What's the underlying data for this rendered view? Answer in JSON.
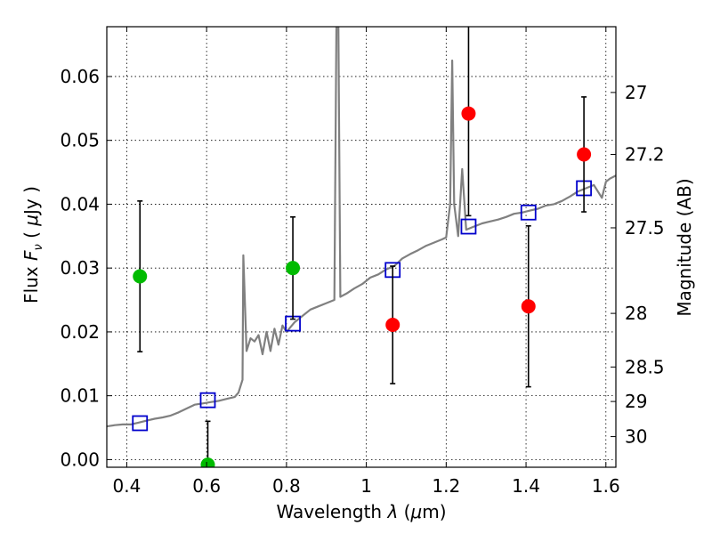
{
  "chart_data": {
    "type": "scatter",
    "title": "",
    "xlabel": "Wavelength  λ (μm)",
    "ylabel": "Flux  F_ν  ( μJy )",
    "ylabel_parts": {
      "a": "Flux  ",
      "b": "F",
      "c": "ν",
      "d": "  ( ",
      "e": "μ",
      "f": "Jy )"
    },
    "xlabel_parts": {
      "a": "Wavelength  ",
      "b": "λ",
      "c": " (",
      "d": "μ",
      "e": "m)"
    },
    "y2label": "Magnitude (AB)",
    "xlim": [
      0.35,
      1.625
    ],
    "ylim": [
      -0.0012,
      0.0678
    ],
    "grid": true,
    "x_ticks": [
      {
        "value": 0.4,
        "label": "0.4"
      },
      {
        "value": 0.6,
        "label": "0.6"
      },
      {
        "value": 0.8,
        "label": "0.8"
      },
      {
        "value": 1.0,
        "label": "1"
      },
      {
        "value": 1.2,
        "label": "1.2"
      },
      {
        "value": 1.4,
        "label": "1.4"
      },
      {
        "value": 1.6,
        "label": "1.6"
      }
    ],
    "y_ticks": [
      {
        "value": 0.0,
        "label": "0.00"
      },
      {
        "value": 0.01,
        "label": "0.01"
      },
      {
        "value": 0.02,
        "label": "0.02"
      },
      {
        "value": 0.03,
        "label": "0.03"
      },
      {
        "value": 0.04,
        "label": "0.04"
      },
      {
        "value": 0.05,
        "label": "0.05"
      },
      {
        "value": 0.06,
        "label": "0.06"
      }
    ],
    "y2_ticks": [
      {
        "flux": 0.0575,
        "label": "27"
      },
      {
        "flux": 0.0478,
        "label": "27.2"
      },
      {
        "flux": 0.0363,
        "label": "27.5"
      },
      {
        "flux": 0.0229,
        "label": "28"
      },
      {
        "flux": 0.0145,
        "label": "28.5"
      },
      {
        "flux": 0.0091,
        "label": "29"
      },
      {
        "flux": 0.0036,
        "label": "30"
      }
    ],
    "series": [
      {
        "kind": "line",
        "color": "#808080",
        "points": [
          [
            0.35,
            0.0052
          ],
          [
            0.37,
            0.0054
          ],
          [
            0.39,
            0.0055
          ],
          [
            0.41,
            0.0055
          ],
          [
            0.43,
            0.0058
          ],
          [
            0.45,
            0.0061
          ],
          [
            0.47,
            0.0064
          ],
          [
            0.49,
            0.0066
          ],
          [
            0.51,
            0.0069
          ],
          [
            0.53,
            0.0074
          ],
          [
            0.55,
            0.008
          ],
          [
            0.57,
            0.0086
          ],
          [
            0.59,
            0.0088
          ],
          [
            0.61,
            0.009
          ],
          [
            0.63,
            0.0092
          ],
          [
            0.65,
            0.0095
          ],
          [
            0.67,
            0.0098
          ],
          [
            0.68,
            0.0105
          ],
          [
            0.69,
            0.0125
          ],
          [
            0.692,
            0.032
          ],
          [
            0.7,
            0.017
          ],
          [
            0.71,
            0.019
          ],
          [
            0.72,
            0.0185
          ],
          [
            0.73,
            0.0195
          ],
          [
            0.74,
            0.0165
          ],
          [
            0.75,
            0.02
          ],
          [
            0.76,
            0.017
          ],
          [
            0.77,
            0.0205
          ],
          [
            0.78,
            0.018
          ],
          [
            0.79,
            0.021
          ],
          [
            0.8,
            0.02
          ],
          [
            0.82,
            0.0215
          ],
          [
            0.84,
            0.0225
          ],
          [
            0.86,
            0.0235
          ],
          [
            0.88,
            0.024
          ],
          [
            0.9,
            0.0245
          ],
          [
            0.92,
            0.025
          ],
          [
            0.925,
            0.068
          ],
          [
            0.93,
            0.068
          ],
          [
            0.935,
            0.0255
          ],
          [
            0.95,
            0.026
          ],
          [
            0.97,
            0.0268
          ],
          [
            0.99,
            0.0275
          ],
          [
            1.01,
            0.0285
          ],
          [
            1.03,
            0.029
          ],
          [
            1.05,
            0.0298
          ],
          [
            1.07,
            0.0303
          ],
          [
            1.09,
            0.0315
          ],
          [
            1.11,
            0.0322
          ],
          [
            1.13,
            0.0328
          ],
          [
            1.15,
            0.0335
          ],
          [
            1.17,
            0.034
          ],
          [
            1.19,
            0.0345
          ],
          [
            1.2,
            0.0348
          ],
          [
            1.21,
            0.04
          ],
          [
            1.215,
            0.0625
          ],
          [
            1.22,
            0.04
          ],
          [
            1.23,
            0.035
          ],
          [
            1.24,
            0.0455
          ],
          [
            1.25,
            0.036
          ],
          [
            1.27,
            0.0365
          ],
          [
            1.29,
            0.037
          ],
          [
            1.31,
            0.0373
          ],
          [
            1.33,
            0.0376
          ],
          [
            1.35,
            0.038
          ],
          [
            1.37,
            0.0385
          ],
          [
            1.39,
            0.0387
          ],
          [
            1.41,
            0.039
          ],
          [
            1.43,
            0.0393
          ],
          [
            1.45,
            0.0398
          ],
          [
            1.47,
            0.04
          ],
          [
            1.49,
            0.0405
          ],
          [
            1.51,
            0.0412
          ],
          [
            1.53,
            0.042
          ],
          [
            1.55,
            0.0425
          ],
          [
            1.57,
            0.043
          ],
          [
            1.59,
            0.041
          ],
          [
            1.6,
            0.0435
          ],
          [
            1.61,
            0.044
          ],
          [
            1.625,
            0.0445
          ]
        ]
      },
      {
        "kind": "model-points",
        "color": "#0000cc",
        "x": [
          0.433,
          0.603,
          0.816,
          1.066,
          1.256,
          1.406,
          1.545
        ],
        "y": [
          0.0057,
          0.0093,
          0.0213,
          0.0297,
          0.0365,
          0.0387,
          0.0425
        ]
      },
      {
        "kind": "observed-points",
        "color": "#00bb00",
        "x": [
          0.433,
          0.603,
          0.816
        ],
        "y": [
          0.0287,
          -0.0008,
          0.03
        ],
        "err": [
          0.0118,
          0.0068,
          0.008
        ]
      },
      {
        "kind": "observed-points",
        "color": "#ff0000",
        "x": [
          1.066,
          1.256,
          1.406,
          1.545
        ],
        "y": [
          0.0211,
          0.0542,
          0.024,
          0.0478
        ],
        "err": [
          0.0092,
          0.016,
          0.0126,
          0.009
        ]
      }
    ]
  }
}
